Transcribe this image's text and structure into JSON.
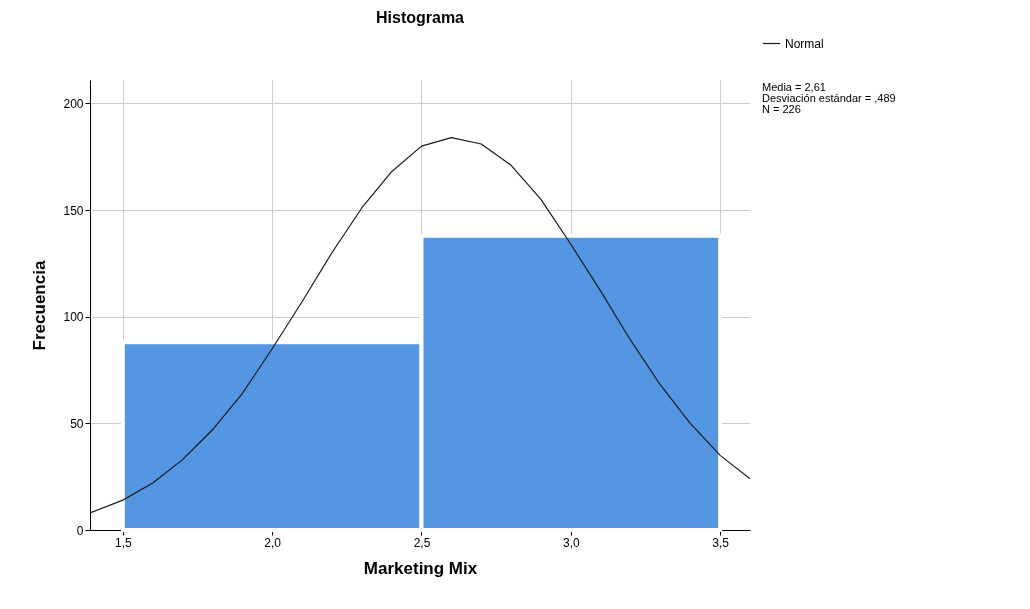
{
  "chart_data": {
    "type": "histogram",
    "title": "Histograma",
    "xlabel": "Marketing Mix",
    "ylabel": "Frecuencia",
    "bins": [
      1.5,
      2.5,
      3.5
    ],
    "values": [
      88,
      138
    ],
    "color": "#5596e3",
    "series": [
      {
        "name": "Normal",
        "type": "line",
        "color": "#1a1a1a",
        "x": [
          1.39,
          1.5,
          1.6,
          1.7,
          1.8,
          1.9,
          2.0,
          2.1,
          2.2,
          2.3,
          2.4,
          2.5,
          2.6,
          2.7,
          2.8,
          2.9,
          3.0,
          3.1,
          3.2,
          3.3,
          3.4,
          3.5,
          3.6
        ],
        "values": [
          8,
          14,
          22,
          33,
          47,
          64,
          85,
          107,
          130,
          151,
          168,
          180,
          184,
          181,
          171,
          155,
          134,
          112,
          89,
          68,
          50,
          35,
          24
        ]
      }
    ],
    "xlim": [
      1.39,
      3.6
    ],
    "xticks": [
      {
        "value": 1.5,
        "label": "1,5"
      },
      {
        "value": 2.0,
        "label": "2,0"
      },
      {
        "value": 2.5,
        "label": "2,5"
      },
      {
        "value": 3.0,
        "label": "3,0"
      },
      {
        "value": 3.5,
        "label": "3,5"
      }
    ],
    "ylim": [
      0,
      211
    ],
    "yticks": [
      0,
      50,
      100,
      150,
      200
    ],
    "grid": true,
    "legend": "top right",
    "annotations": [
      "Media = 2,61",
      "Desviación estándar = ,489",
      "N = 226"
    ]
  }
}
